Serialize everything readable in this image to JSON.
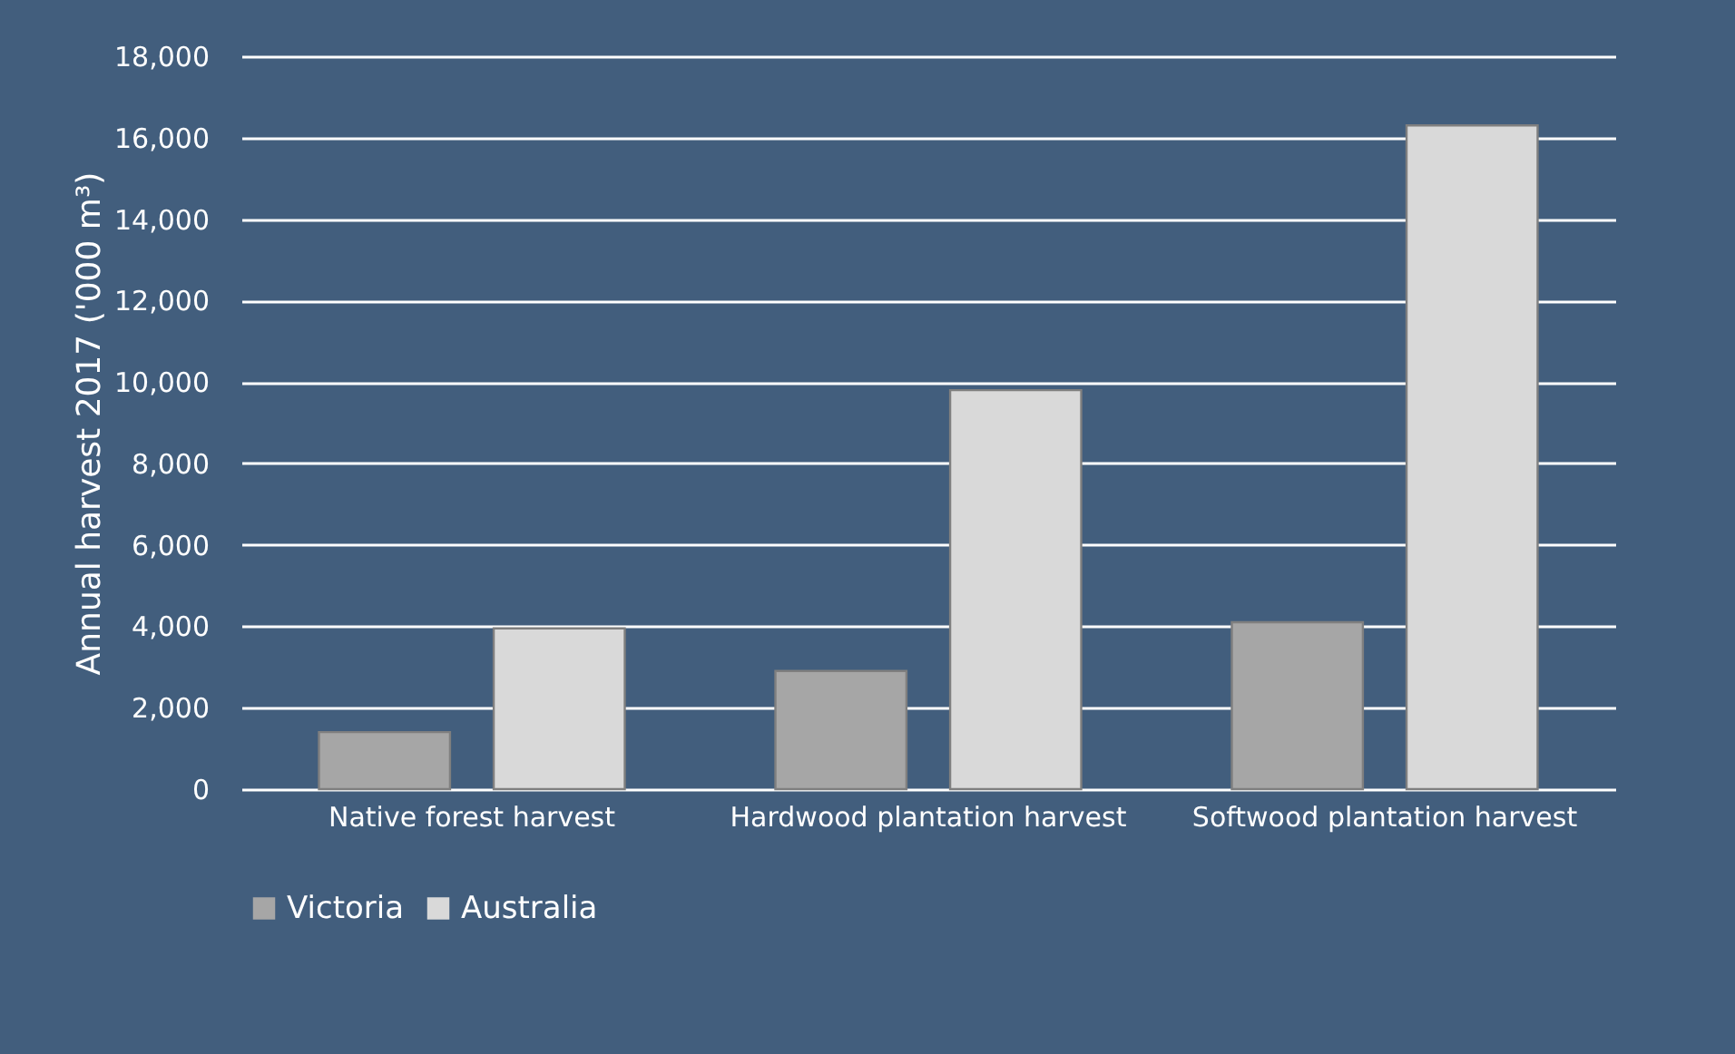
{
  "chart_data": {
    "type": "bar",
    "ylabel": "Annual harvest 2017 ('000 m³)",
    "categories": [
      "Native forest harvest",
      "Hardwood plantation harvest",
      "Softwood plantation harvest"
    ],
    "series": [
      {
        "name": "Victoria",
        "color": "#a6a6a6",
        "values": [
          1400,
          2900,
          4100
        ]
      },
      {
        "name": "Australia",
        "color": "#d9d9d9",
        "values": [
          3950,
          9800,
          16300
        ]
      }
    ],
    "ylim": [
      0,
      18000
    ],
    "yticks": [
      0,
      {
        "value": 2000,
        "label": "2,000"
      },
      {
        "value": 4000,
        "label": "4,000"
      },
      {
        "value": 6000,
        "label": "6,000"
      },
      {
        "value": 8000,
        "label": "8,000"
      },
      {
        "value": 10000,
        "label": "10,000"
      },
      {
        "value": 12000,
        "label": "12,000"
      },
      {
        "value": 14000,
        "label": "14,000"
      },
      {
        "value": 16000,
        "label": "16,000"
      },
      {
        "value": 18000,
        "label": "18,000"
      }
    ],
    "grid": "y",
    "legend": "bottom"
  }
}
